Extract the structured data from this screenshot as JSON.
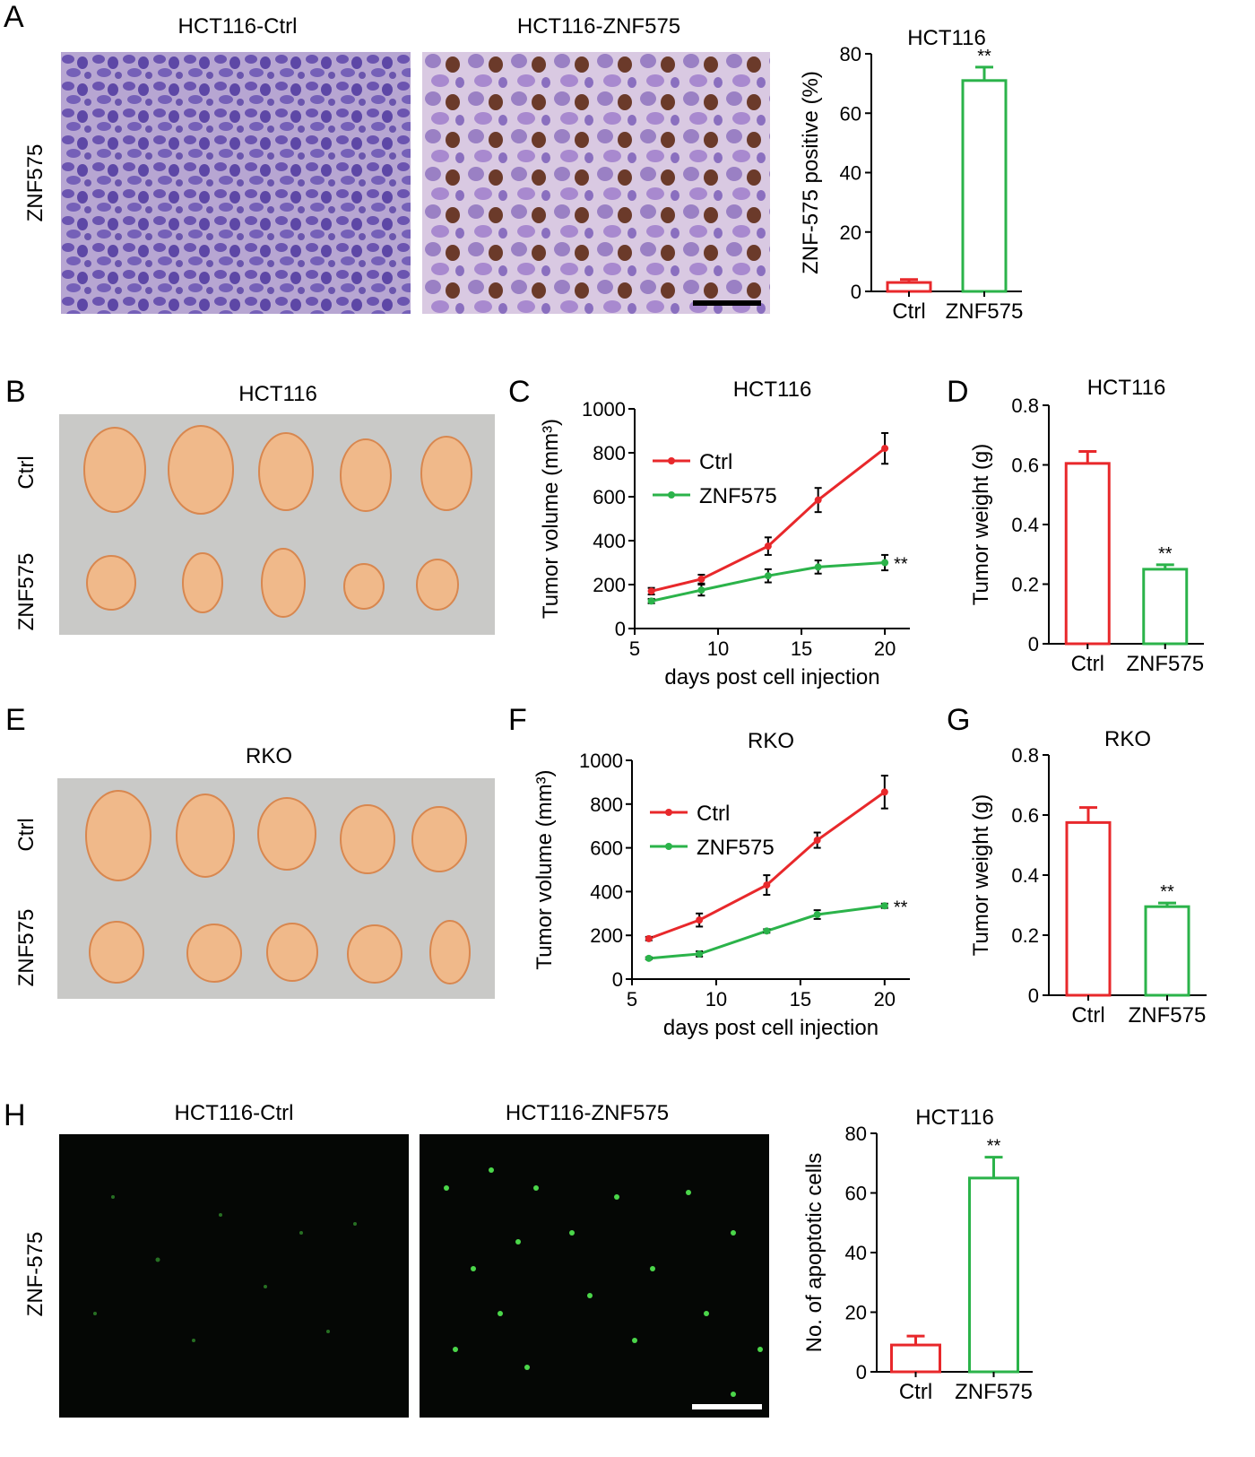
{
  "panels": {
    "A": {
      "letter": "A",
      "img_titles": [
        "HCT116-Ctrl",
        "HCT116-ZNF575"
      ],
      "row_label": "ZNF575"
    },
    "B": {
      "letter": "B",
      "title": "HCT116",
      "row_labels": [
        "Ctrl",
        "ZNF575"
      ]
    },
    "C": {
      "letter": "C"
    },
    "D": {
      "letter": "D"
    },
    "E": {
      "letter": "E",
      "title": "RKO",
      "row_labels": [
        "Ctrl",
        "ZNF575"
      ]
    },
    "F": {
      "letter": "F"
    },
    "G": {
      "letter": "G"
    },
    "H": {
      "letter": "H",
      "img_titles": [
        "HCT116-Ctrl",
        "HCT116-ZNF575"
      ],
      "row_label": "ZNF-575"
    }
  },
  "colors": {
    "ctrl": "#e8282b",
    "znf575": "#2bb34a",
    "photo_bg": "#c9c9c7",
    "tumor": "#f0b98a"
  },
  "chart_data": [
    {
      "id": "A-bar",
      "type": "bar",
      "title": "HCT116",
      "categories": [
        "Ctrl",
        "ZNF575"
      ],
      "values": [
        3,
        71
      ],
      "errors": [
        1,
        4.5
      ],
      "xlabel": "",
      "ylabel": "ZNF-575 positive (%)",
      "ylim": [
        0,
        80
      ],
      "yticks": [
        0,
        20,
        40,
        60,
        80
      ],
      "significance": [
        "",
        "**"
      ],
      "grid": false
    },
    {
      "id": "C-line",
      "type": "line",
      "title": "HCT116",
      "xlabel": "days post cell injection",
      "ylabel": "Tumor volume (mm³)",
      "xlim": [
        5,
        21.5
      ],
      "ylim": [
        0,
        1000
      ],
      "xticks": [
        5,
        10,
        15,
        20
      ],
      "yticks": [
        0,
        200,
        400,
        600,
        800,
        1000
      ],
      "legend": "top-left",
      "significance": "**",
      "series": [
        {
          "name": "Ctrl",
          "x": [
            6,
            9,
            13,
            16,
            20
          ],
          "y": [
            170,
            225,
            375,
            585,
            820
          ],
          "err": [
            15,
            20,
            40,
            55,
            70
          ]
        },
        {
          "name": "ZNF575",
          "x": [
            6,
            9,
            13,
            16,
            20
          ],
          "y": [
            125,
            175,
            240,
            280,
            300
          ],
          "err": [
            10,
            25,
            30,
            30,
            35
          ]
        }
      ]
    },
    {
      "id": "D-bar",
      "type": "bar",
      "title": "HCT116",
      "categories": [
        "Ctrl",
        "ZNF575"
      ],
      "values": [
        0.605,
        0.25
      ],
      "errors": [
        0.04,
        0.015
      ],
      "xlabel": "",
      "ylabel": "Tumor weight (g)",
      "ylim": [
        0,
        0.8
      ],
      "yticks": [
        0,
        0.2,
        0.4,
        0.6,
        0.8
      ],
      "significance": [
        "",
        "**"
      ],
      "grid": false
    },
    {
      "id": "F-line",
      "type": "line",
      "title": "RKO",
      "xlabel": "days post cell injection",
      "ylabel": "Tumor volume (mm³)",
      "xlim": [
        5,
        21.5
      ],
      "ylim": [
        0,
        1000
      ],
      "xticks": [
        5,
        10,
        15,
        20
      ],
      "yticks": [
        0,
        200,
        400,
        600,
        800,
        1000
      ],
      "legend": "top-left",
      "significance": "**",
      "series": [
        {
          "name": "Ctrl",
          "x": [
            6,
            9,
            13,
            16,
            20
          ],
          "y": [
            185,
            270,
            430,
            635,
            855
          ],
          "err": [
            8,
            30,
            45,
            35,
            75
          ]
        },
        {
          "name": "ZNF575",
          "x": [
            6,
            9,
            13,
            16,
            20
          ],
          "y": [
            95,
            115,
            220,
            295,
            335
          ],
          "err": [
            5,
            12,
            8,
            20,
            10
          ]
        }
      ]
    },
    {
      "id": "G-bar",
      "type": "bar",
      "title": "RKO",
      "categories": [
        "Ctrl",
        "ZNF575"
      ],
      "values": [
        0.575,
        0.295
      ],
      "errors": [
        0.05,
        0.012
      ],
      "xlabel": "",
      "ylabel": "Tumor weight (g)",
      "ylim": [
        0,
        0.8
      ],
      "yticks": [
        0,
        0.2,
        0.4,
        0.6,
        0.8
      ],
      "significance": [
        "",
        "**"
      ],
      "grid": false
    },
    {
      "id": "H-bar",
      "type": "bar",
      "title": "HCT116",
      "categories": [
        "Ctrl",
        "ZNF575"
      ],
      "values": [
        9,
        65
      ],
      "errors": [
        3,
        7
      ],
      "xlabel": "",
      "ylabel": "No. of apoptotic cells",
      "ylim": [
        0,
        80
      ],
      "yticks": [
        0,
        20,
        40,
        60,
        80
      ],
      "significance": [
        "",
        "**"
      ],
      "grid": false
    }
  ]
}
